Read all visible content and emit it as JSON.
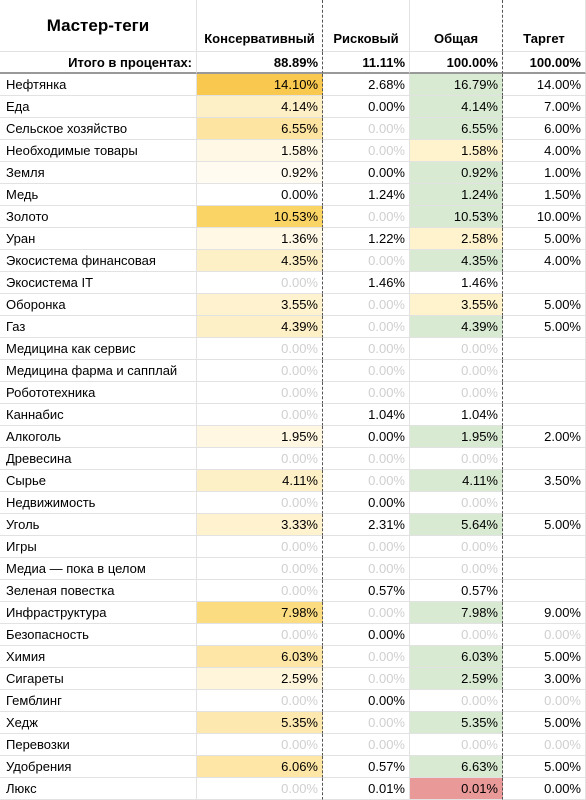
{
  "header": {
    "title": "Мастер-теги",
    "columns": [
      "Консервативный",
      "Рисковый",
      "Общая",
      "Таргет"
    ]
  },
  "totals": {
    "label": "Итого в процентах:",
    "values": [
      "88.89%",
      "11.11%",
      "100.00%",
      "100.00%"
    ]
  },
  "rows": [
    {
      "cells": [
        "Нефтянка",
        "14.10%",
        "2.68%",
        "16.79%",
        "14.00%"
      ],
      "fills": [
        "#f9c84f",
        null,
        "#d9ead3",
        null
      ],
      "dim": []
    },
    {
      "cells": [
        "Еда",
        "4.14%",
        "0.00%",
        "4.14%",
        "7.00%"
      ],
      "fills": [
        "#fef0c6",
        null,
        "#d9ead3",
        null
      ],
      "dim": []
    },
    {
      "cells": [
        "Сельское хозяйство",
        "6.55%",
        "0.00%",
        "6.55%",
        "6.00%"
      ],
      "fills": [
        "#fde4a0",
        null,
        "#d9ead3",
        null
      ],
      "dim": [
        2
      ]
    },
    {
      "cells": [
        "Необходимые товары",
        "1.58%",
        "0.00%",
        "1.58%",
        "4.00%"
      ],
      "fills": [
        "#fff8e5",
        null,
        "#fef3cd",
        null
      ],
      "dim": [
        2
      ]
    },
    {
      "cells": [
        "Земля",
        "0.92%",
        "0.00%",
        "0.92%",
        "1.00%"
      ],
      "fills": [
        "#fffbf0",
        null,
        "#d9ead3",
        null
      ],
      "dim": []
    },
    {
      "cells": [
        "Медь",
        "0.00%",
        "1.24%",
        "1.24%",
        "1.50%"
      ],
      "fills": [
        null,
        null,
        "#d9ead3",
        null
      ],
      "dim": []
    },
    {
      "cells": [
        "Золото",
        "10.53%",
        "0.00%",
        "10.53%",
        "10.00%"
      ],
      "fills": [
        "#fbd466",
        null,
        "#d9ead3",
        null
      ],
      "dim": [
        2
      ]
    },
    {
      "cells": [
        "Уран",
        "1.36%",
        "1.22%",
        "2.58%",
        "5.00%"
      ],
      "fills": [
        "#fff8e5",
        null,
        "#fef3cd",
        null
      ],
      "dim": []
    },
    {
      "cells": [
        "Экосистема финансовая",
        "4.35%",
        "0.00%",
        "4.35%",
        "4.00%"
      ],
      "fills": [
        "#fef0c6",
        null,
        "#d9ead3",
        null
      ],
      "dim": [
        2
      ]
    },
    {
      "cells": [
        "Экосистема IT",
        "0.00%",
        "1.46%",
        "1.46%",
        null
      ],
      "fills": [
        null,
        null,
        null,
        null
      ],
      "dim": [
        1
      ]
    },
    {
      "cells": [
        "Оборонка",
        "3.55%",
        "0.00%",
        "3.55%",
        "5.00%"
      ],
      "fills": [
        "#fef2cf",
        null,
        "#fef3cd",
        null
      ],
      "dim": [
        2
      ]
    },
    {
      "cells": [
        "Газ",
        "4.39%",
        "0.00%",
        "4.39%",
        "5.00%"
      ],
      "fills": [
        "#fef0c6",
        null,
        "#d9ead3",
        null
      ],
      "dim": [
        2
      ]
    },
    {
      "cells": [
        "Медицина как сервис",
        "0.00%",
        "0.00%",
        "0.00%",
        null
      ],
      "fills": [
        null,
        null,
        null,
        null
      ],
      "dim": [
        1,
        2,
        3
      ]
    },
    {
      "cells": [
        "Медицина фарма и сапплай",
        "0.00%",
        "0.00%",
        "0.00%",
        null
      ],
      "fills": [
        null,
        null,
        null,
        null
      ],
      "dim": [
        1,
        2,
        3
      ]
    },
    {
      "cells": [
        "Робототехника",
        "0.00%",
        "0.00%",
        "0.00%",
        null
      ],
      "fills": [
        null,
        null,
        null,
        null
      ],
      "dim": [
        1,
        2,
        3
      ]
    },
    {
      "cells": [
        "Каннабис",
        "0.00%",
        "1.04%",
        "1.04%",
        null
      ],
      "fills": [
        null,
        null,
        null,
        null
      ],
      "dim": [
        1
      ]
    },
    {
      "cells": [
        "Алкоголь",
        "1.95%",
        "0.00%",
        "1.95%",
        "2.00%"
      ],
      "fills": [
        "#fff7e2",
        null,
        "#d9ead3",
        null
      ],
      "dim": []
    },
    {
      "cells": [
        "Древесина",
        "0.00%",
        "0.00%",
        "0.00%",
        null
      ],
      "fills": [
        null,
        null,
        null,
        null
      ],
      "dim": [
        1,
        2,
        3
      ]
    },
    {
      "cells": [
        "Сырье",
        "4.11%",
        "0.00%",
        "4.11%",
        "3.50%"
      ],
      "fills": [
        "#fef0c6",
        null,
        "#d9ead3",
        null
      ],
      "dim": [
        2
      ]
    },
    {
      "cells": [
        "Недвижимость",
        "0.00%",
        "0.00%",
        "0.00%",
        null
      ],
      "fills": [
        null,
        null,
        null,
        null
      ],
      "dim": [
        1,
        3
      ]
    },
    {
      "cells": [
        "Уголь",
        "3.33%",
        "2.31%",
        "5.64%",
        "5.00%"
      ],
      "fills": [
        "#fef2cf",
        null,
        "#d9ead3",
        null
      ],
      "dim": []
    },
    {
      "cells": [
        "Игры",
        "0.00%",
        "0.00%",
        "0.00%",
        null
      ],
      "fills": [
        null,
        null,
        null,
        null
      ],
      "dim": [
        1,
        2,
        3
      ]
    },
    {
      "cells": [
        "Медиа — пока в целом",
        "0.00%",
        "0.00%",
        "0.00%",
        null
      ],
      "fills": [
        null,
        null,
        null,
        null
      ],
      "dim": [
        1,
        2,
        3
      ]
    },
    {
      "cells": [
        "Зеленая повестка",
        "0.00%",
        "0.57%",
        "0.57%",
        null
      ],
      "fills": [
        null,
        null,
        null,
        null
      ],
      "dim": [
        1
      ]
    },
    {
      "cells": [
        "Инфраструктура",
        "7.98%",
        "0.00%",
        "7.98%",
        "9.00%"
      ],
      "fills": [
        "#fcdc80",
        null,
        "#d9ead3",
        null
      ],
      "dim": [
        2
      ]
    },
    {
      "cells": [
        "Безопасность",
        "0.00%",
        "0.00%",
        "0.00%",
        "0.00%"
      ],
      "fills": [
        null,
        null,
        null,
        null
      ],
      "dim": [
        1,
        3,
        4
      ]
    },
    {
      "cells": [
        "Химия",
        "6.03%",
        "0.00%",
        "6.03%",
        "5.00%"
      ],
      "fills": [
        "#fde6a6",
        null,
        "#d9ead3",
        null
      ],
      "dim": [
        2
      ]
    },
    {
      "cells": [
        "Сигареты",
        "2.59%",
        "0.00%",
        "2.59%",
        "3.00%"
      ],
      "fills": [
        "#fef5da",
        null,
        "#d9ead3",
        null
      ],
      "dim": [
        2
      ]
    },
    {
      "cells": [
        "Гемблинг",
        "0.00%",
        "0.00%",
        "0.00%",
        "0.00%"
      ],
      "fills": [
        null,
        null,
        null,
        null
      ],
      "dim": [
        1,
        3,
        4
      ]
    },
    {
      "cells": [
        "Хедж",
        "5.35%",
        "0.00%",
        "5.35%",
        "5.00%"
      ],
      "fills": [
        "#fde9b0",
        null,
        "#d9ead3",
        null
      ],
      "dim": [
        2
      ]
    },
    {
      "cells": [
        "Перевозки",
        "0.00%",
        "0.00%",
        "0.00%",
        "0.00%"
      ],
      "fills": [
        null,
        null,
        null,
        null
      ],
      "dim": [
        1,
        2,
        3,
        4
      ]
    },
    {
      "cells": [
        "Удобрения",
        "6.06%",
        "0.57%",
        "6.63%",
        "5.00%"
      ],
      "fills": [
        "#fde6a6",
        null,
        "#d9ead3",
        null
      ],
      "dim": []
    },
    {
      "cells": [
        "Люкс",
        "0.00%",
        "0.01%",
        "0.01%",
        "0.00%"
      ],
      "fills": [
        null,
        null,
        "#ea9999",
        null
      ],
      "dim": [
        1
      ]
    }
  ]
}
